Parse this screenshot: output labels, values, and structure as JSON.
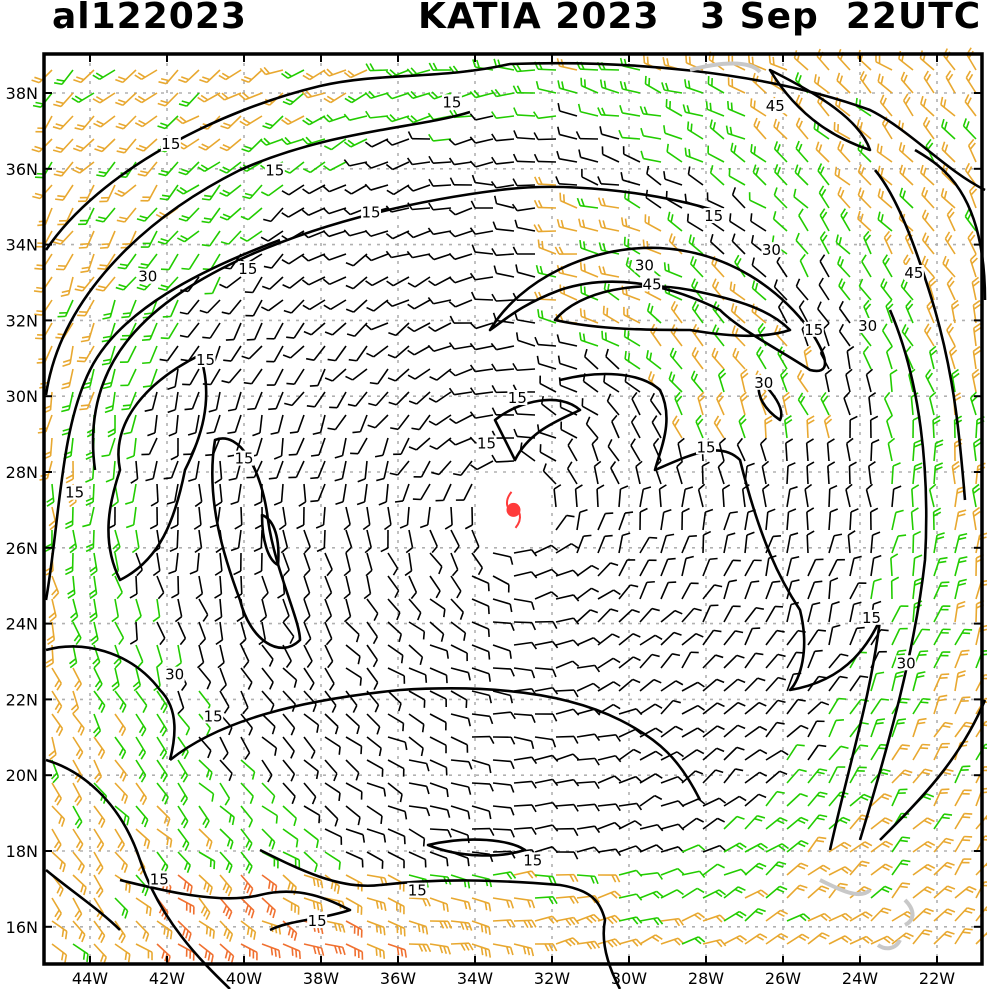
{
  "header": {
    "storm_id": "al122023",
    "storm_title": "KATIA 2023   3 Sep  22UTC"
  },
  "axes": {
    "lat_labels": [
      "38N",
      "36N",
      "34N",
      "32N",
      "30N",
      "28N",
      "26N",
      "24N",
      "22N",
      "20N",
      "18N",
      "16N"
    ],
    "lon_labels": [
      "44W",
      "42W",
      "40W",
      "38W",
      "36W",
      "34W",
      "32W",
      "30W",
      "28W",
      "26W",
      "24W",
      "22W"
    ]
  },
  "contour_labels": [
    {
      "text": "15",
      "lon": -34.6,
      "lat": 37.7
    },
    {
      "text": "15",
      "lon": -41.9,
      "lat": 36.6
    },
    {
      "text": "15",
      "lon": -39.2,
      "lat": 35.9
    },
    {
      "text": "15",
      "lon": -36.7,
      "lat": 34.8
    },
    {
      "text": "15",
      "lon": -27.8,
      "lat": 34.7
    },
    {
      "text": "15",
      "lon": -39.9,
      "lat": 33.3
    },
    {
      "text": "30",
      "lon": -42.5,
      "lat": 33.1
    },
    {
      "text": "30",
      "lon": -29.6,
      "lat": 33.4
    },
    {
      "text": "45",
      "lon": -29.4,
      "lat": 32.9
    },
    {
      "text": "30",
      "lon": -26.3,
      "lat": 33.8
    },
    {
      "text": "45",
      "lon": -26.2,
      "lat": 37.6
    },
    {
      "text": "45",
      "lon": -22.6,
      "lat": 33.2
    },
    {
      "text": "30",
      "lon": -23.8,
      "lat": 31.8
    },
    {
      "text": "15",
      "lon": -25.2,
      "lat": 31.7
    },
    {
      "text": "15",
      "lon": -41.0,
      "lat": 30.9
    },
    {
      "text": "30",
      "lon": -26.5,
      "lat": 30.3
    },
    {
      "text": "15",
      "lon": -32.9,
      "lat": 29.9
    },
    {
      "text": "15",
      "lon": -33.7,
      "lat": 28.7
    },
    {
      "text": "15",
      "lon": -28.0,
      "lat": 28.6
    },
    {
      "text": "15",
      "lon": -40.0,
      "lat": 28.3
    },
    {
      "text": "15",
      "lon": -44.4,
      "lat": 27.4
    },
    {
      "text": "15",
      "lon": -23.7,
      "lat": 24.1
    },
    {
      "text": "30",
      "lon": -41.8,
      "lat": 22.6
    },
    {
      "text": "30",
      "lon": -22.8,
      "lat": 22.9
    },
    {
      "text": "15",
      "lon": -40.8,
      "lat": 21.5
    },
    {
      "text": "15",
      "lon": -32.5,
      "lat": 17.7
    },
    {
      "text": "15",
      "lon": -42.2,
      "lat": 17.2
    },
    {
      "text": "15",
      "lon": -35.5,
      "lat": 16.9
    },
    {
      "text": "15",
      "lon": -38.1,
      "lat": 16.1
    }
  ],
  "storm_center": {
    "lon": -33.0,
    "lat": 27.0,
    "color": "#ff3b3b"
  },
  "colors": {
    "barb_low": "#000000",
    "barb_mid": "#22cc00",
    "barb_high": "#e8a830",
    "barb_max": "#f07030",
    "grid": "#b0b0b0",
    "contour": "#000000"
  }
}
